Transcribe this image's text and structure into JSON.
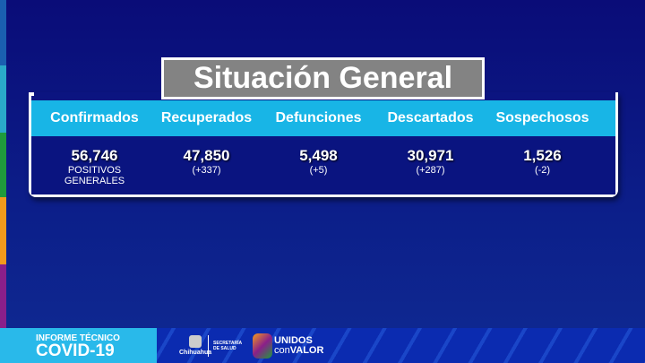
{
  "title": "Situación General",
  "columns": [
    {
      "label": "Confirmados",
      "value": "56,746",
      "sub": [
        "POSITIVOS",
        "GENERALES"
      ]
    },
    {
      "label": "Recuperados",
      "value": "47,850",
      "sub": [
        "(+337)"
      ]
    },
    {
      "label": "Defunciones",
      "value": "5,498",
      "sub": [
        "(+5)"
      ]
    },
    {
      "label": "Descartados",
      "value": "30,971",
      "sub": [
        "(+287)"
      ]
    },
    {
      "label": "Sospechosos",
      "value": "1,526",
      "sub": [
        "(-2)"
      ]
    }
  ],
  "footer": {
    "line1": "INFORME TÉCNICO",
    "line2": "COVID-19",
    "gov": "Chihuahua",
    "dept": "SECRETARÍA DE SALUD",
    "slogan1": "UNIDOS",
    "slogan2": "con",
    "slogan3": "VALOR"
  },
  "colors": {
    "stripes": [
      "#1a5fb0",
      "#2aa9c9",
      "#1f9a3c",
      "#f39a1c",
      "#8a1f8a"
    ],
    "header": "#18b5e6",
    "background": "#0a0c78"
  }
}
